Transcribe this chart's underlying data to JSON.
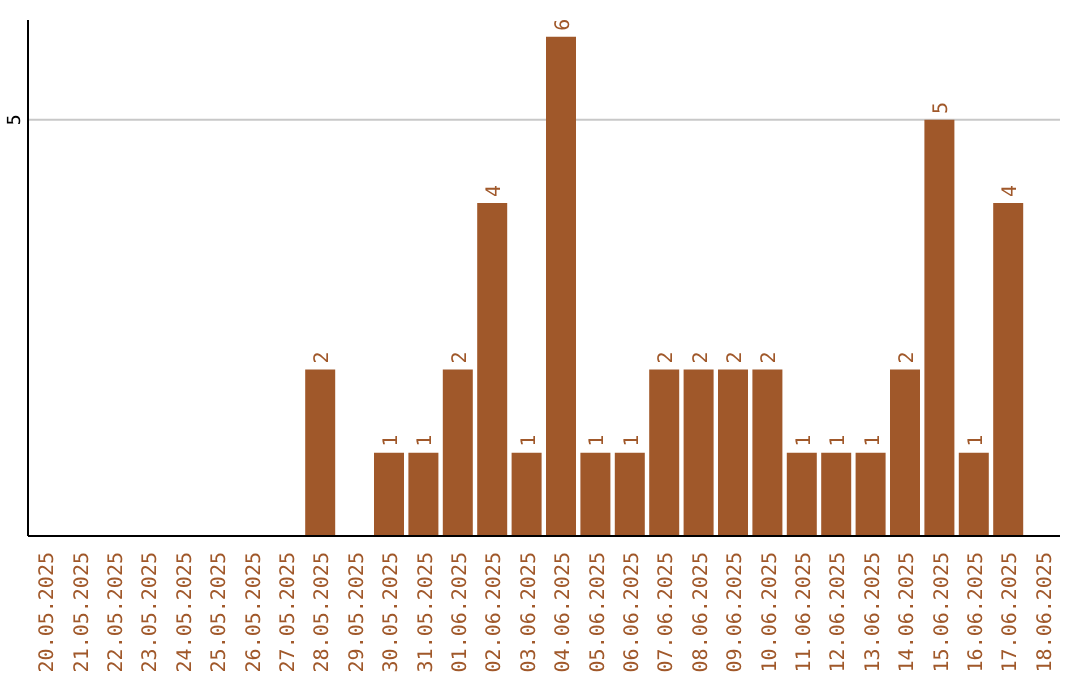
{
  "chart_data": {
    "type": "bar",
    "categories": [
      "20.05.2025",
      "21.05.2025",
      "22.05.2025",
      "23.05.2025",
      "24.05.2025",
      "25.05.2025",
      "26.05.2025",
      "27.05.2025",
      "28.05.2025",
      "29.05.2025",
      "30.05.2025",
      "31.05.2025",
      "01.06.2025",
      "02.06.2025",
      "03.06.2025",
      "04.06.2025",
      "05.06.2025",
      "06.06.2025",
      "07.06.2025",
      "08.06.2025",
      "09.06.2025",
      "10.06.2025",
      "11.06.2025",
      "12.06.2025",
      "13.06.2025",
      "14.06.2025",
      "15.06.2025",
      "16.06.2025",
      "17.06.2025",
      "18.06.2025"
    ],
    "values": [
      0,
      0,
      0,
      0,
      0,
      0,
      0,
      0,
      2,
      0,
      1,
      1,
      2,
      4,
      1,
      6,
      1,
      1,
      2,
      2,
      2,
      2,
      1,
      1,
      1,
      2,
      5,
      1,
      4,
      0
    ],
    "value_labels": [
      null,
      null,
      null,
      null,
      null,
      null,
      null,
      null,
      "2",
      null,
      "1",
      "1",
      "2",
      "4",
      "1",
      "6",
      "1",
      "1",
      "2",
      "2",
      "2",
      "2",
      "1",
      "1",
      "1",
      "2",
      "5",
      "1",
      "4",
      null
    ],
    "color": "#a0582a",
    "ylim": [
      0,
      6.2
    ],
    "yticks": [
      5
    ],
    "grid": "y"
  }
}
